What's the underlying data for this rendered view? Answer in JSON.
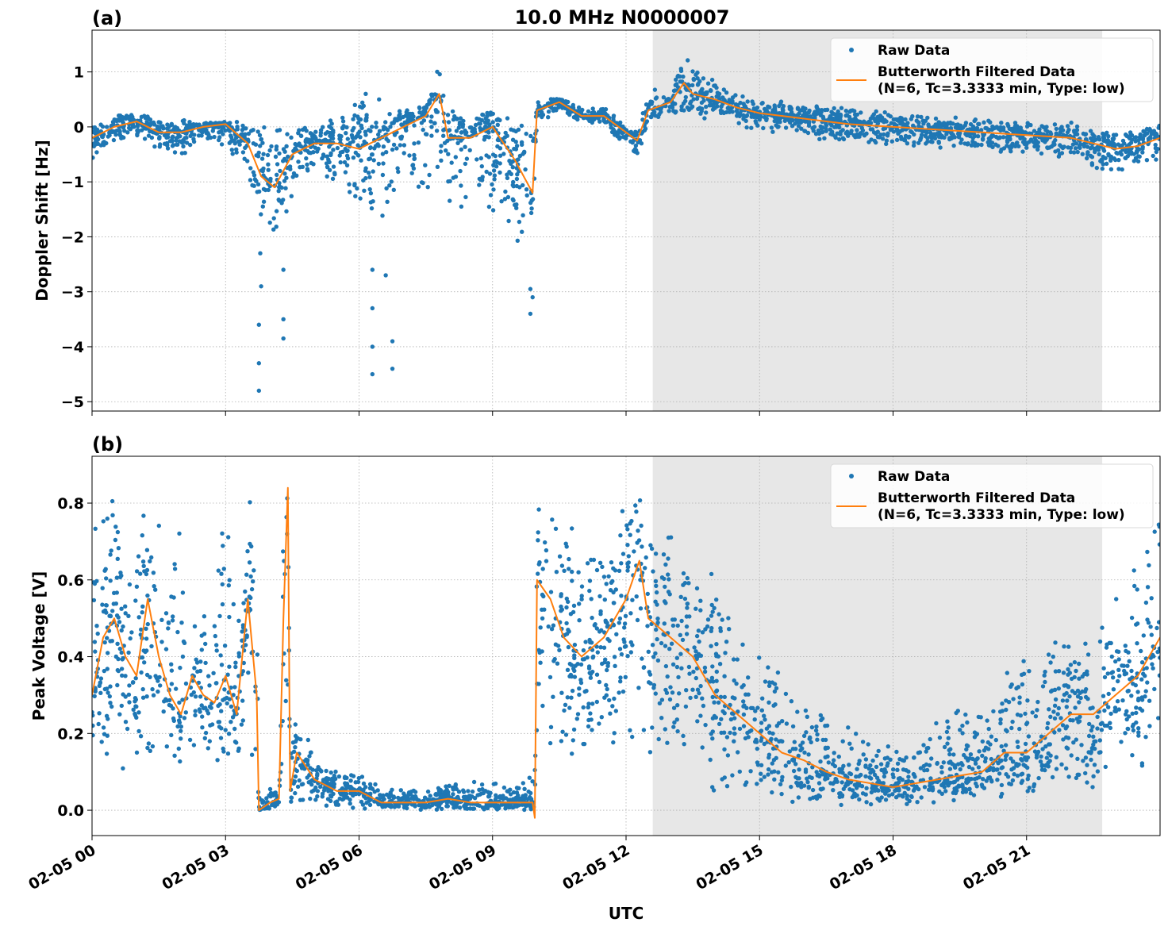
{
  "title": "10.0 MHz N0000007",
  "xlabel": "UTC",
  "xtick_labels": [
    "02-05 00",
    "02-05 03",
    "02-05 06",
    "02-05 09",
    "02-05 12",
    "02-05 15",
    "02-05 18",
    "02-05 21"
  ],
  "xtick_hours": [
    0,
    3,
    6,
    9,
    12,
    15,
    18,
    21
  ],
  "xlim_hours": [
    0,
    24
  ],
  "shaded_span_utc": [
    "12:36",
    "22:42"
  ],
  "colors": {
    "raw": "#1f77b4",
    "filtered": "#ff7f0e",
    "shade": "#e7e7e7",
    "grid": "#b0b0b0"
  },
  "legend": {
    "raw": "Raw Data",
    "filtered_line1": "Butterworth Filtered Data",
    "filtered_line2": "(N=6, Tc=3.3333 min, Type: low)",
    "placement": "top-right"
  },
  "chart_data": [
    {
      "type": "scatter+line",
      "panel_label": "(a)",
      "ylabel": "Doppler Shift [Hz]",
      "ylim": [
        -5.17,
        1.76
      ],
      "yticks": [
        1,
        0,
        -1,
        -2,
        -3,
        -4,
        -5
      ],
      "ytick_labels": [
        "1",
        "0",
        "−1",
        "−2",
        "−3",
        "−4",
        "−5"
      ],
      "grid": true,
      "x_hours": [
        0,
        0.5,
        1,
        1.5,
        2,
        2.5,
        3,
        3.5,
        3.8,
        4.1,
        4.5,
        5,
        5.5,
        6,
        6.5,
        7,
        7.5,
        7.8,
        8,
        8.5,
        9,
        9.5,
        9.9,
        10,
        10.5,
        11,
        11.5,
        12,
        12.25,
        12.5,
        13,
        13.3,
        13.5,
        14,
        14.5,
        15,
        16,
        17,
        18,
        19,
        20,
        21,
        22,
        22.5,
        23,
        23.5,
        24
      ],
      "filtered": [
        -0.2,
        0,
        0.1,
        -0.1,
        -0.1,
        0,
        0.05,
        -0.3,
        -0.9,
        -1.1,
        -0.5,
        -0.3,
        -0.3,
        -0.4,
        -0.2,
        0,
        0.2,
        0.6,
        -0.2,
        -0.2,
        0,
        -0.6,
        -1.2,
        0.3,
        0.45,
        0.2,
        0.2,
        -0.1,
        -0.25,
        0.3,
        0.45,
        0.8,
        0.6,
        0.5,
        0.35,
        0.25,
        0.15,
        0.05,
        0,
        -0.05,
        -0.1,
        -0.15,
        -0.2,
        -0.3,
        -0.4,
        -0.35,
        -0.2
      ],
      "raw_low": [
        -0.6,
        -0.3,
        -0.2,
        -0.5,
        -0.6,
        -0.2,
        -0.4,
        -0.9,
        -2.0,
        -2.2,
        -1.3,
        -0.9,
        -1.2,
        -1.5,
        -1.8,
        -1.2,
        -1.5,
        -0.8,
        -1.5,
        -2.0,
        -1.8,
        -2.2,
        -2.5,
        0.0,
        0.3,
        0.05,
        0.0,
        -0.4,
        -0.55,
        0.05,
        0.2,
        0.2,
        0.2,
        0.1,
        0.0,
        -0.1,
        -0.2,
        -0.3,
        -0.4,
        -0.4,
        -0.45,
        -0.5,
        -0.6,
        -0.8,
        -1.0,
        -0.8,
        -0.6
      ],
      "raw_high": [
        0.1,
        0.25,
        0.3,
        0.2,
        0.15,
        0.1,
        0.1,
        0.1,
        0.1,
        0.1,
        0.2,
        0.1,
        0.2,
        0.6,
        0.3,
        0.3,
        0.5,
        1.4,
        0.4,
        0.3,
        0.35,
        0.3,
        0.2,
        0.5,
        0.55,
        0.35,
        0.35,
        0.1,
        0.0,
        0.8,
        0.55,
        1.4,
        1.1,
        0.9,
        0.6,
        0.5,
        0.45,
        0.35,
        0.3,
        0.2,
        0.15,
        0.1,
        0.1,
        0.0,
        -0.1,
        0.0,
        0.1
      ],
      "raw_outliers": [
        [
          3.75,
          -4.8
        ],
        [
          3.75,
          -4.3
        ],
        [
          3.75,
          -3.6
        ],
        [
          3.8,
          -2.9
        ],
        [
          3.78,
          -2.3
        ],
        [
          4.3,
          -3.85
        ],
        [
          4.3,
          -3.5
        ],
        [
          4.3,
          -2.6
        ],
        [
          6.3,
          -4.5
        ],
        [
          6.3,
          -4.0
        ],
        [
          6.3,
          -3.3
        ],
        [
          6.3,
          -2.6
        ],
        [
          6.75,
          -4.4
        ],
        [
          6.75,
          -3.9
        ],
        [
          6.6,
          -2.7
        ],
        [
          9.85,
          -3.4
        ],
        [
          9.9,
          -3.1
        ],
        [
          9.85,
          -2.95
        ],
        [
          6.15,
          0.6
        ],
        [
          6.45,
          0.5
        ]
      ]
    },
    {
      "type": "scatter+line",
      "panel_label": "(b)",
      "ylabel": "Peak Voltage [V]",
      "ylim": [
        -0.066,
        0.922
      ],
      "yticks": [
        0.8,
        0.6,
        0.4,
        0.2,
        0.0
      ],
      "ytick_labels": [
        "0.8",
        "0.6",
        "0.4",
        "0.2",
        "0.0"
      ],
      "grid": true,
      "x_hours": [
        0,
        0.25,
        0.5,
        0.75,
        1,
        1.25,
        1.5,
        1.75,
        2,
        2.25,
        2.5,
        2.75,
        3,
        3.25,
        3.5,
        3.7,
        3.75,
        4,
        4.2,
        4.3,
        4.4,
        4.45,
        4.6,
        5,
        5.5,
        6,
        6.5,
        7,
        7.5,
        8,
        8.5,
        9,
        9.5,
        9.9,
        9.95,
        10,
        10.3,
        10.6,
        11,
        11.5,
        12,
        12.3,
        12.5,
        13,
        13.5,
        14,
        14.5,
        15,
        15.5,
        16,
        16.5,
        17,
        17.5,
        18,
        18.5,
        19,
        19.5,
        20,
        20.5,
        21,
        21.5,
        22,
        22.5,
        23,
        23.5,
        24
      ],
      "filtered": [
        0.3,
        0.45,
        0.5,
        0.4,
        0.35,
        0.55,
        0.4,
        0.3,
        0.25,
        0.35,
        0.3,
        0.28,
        0.35,
        0.25,
        0.55,
        0.3,
        0.0,
        0.02,
        0.03,
        0.5,
        0.84,
        0.05,
        0.15,
        0.08,
        0.05,
        0.05,
        0.02,
        0.02,
        0.02,
        0.03,
        0.02,
        0.02,
        0.02,
        0.02,
        -0.02,
        0.6,
        0.55,
        0.45,
        0.4,
        0.45,
        0.55,
        0.65,
        0.5,
        0.45,
        0.4,
        0.3,
        0.25,
        0.2,
        0.15,
        0.13,
        0.1,
        0.08,
        0.07,
        0.06,
        0.07,
        0.08,
        0.09,
        0.1,
        0.15,
        0.15,
        0.2,
        0.25,
        0.25,
        0.3,
        0.35,
        0.45
      ],
      "raw_low": [
        0.08,
        0.08,
        0.08,
        0.08,
        0.08,
        0.08,
        0.08,
        0.08,
        0.08,
        0.08,
        0.08,
        0.08,
        0.08,
        0.08,
        0.08,
        0.08,
        0,
        0,
        0,
        0,
        0,
        0,
        0,
        0,
        0,
        0,
        0,
        0,
        0,
        0,
        0,
        0,
        0,
        0,
        0,
        0.15,
        0.15,
        0.12,
        0.12,
        0.12,
        0.15,
        0.15,
        0.1,
        0.08,
        0.05,
        0.04,
        0.03,
        0.02,
        0.01,
        0.01,
        0.01,
        0.01,
        0.01,
        0.01,
        0.01,
        0.01,
        0.01,
        0.01,
        0.02,
        0.02,
        0.03,
        0.04,
        0.05,
        0.08,
        0.08,
        0.1
      ],
      "raw_high": [
        0.85,
        0.8,
        0.85,
        0.75,
        0.85,
        0.8,
        0.75,
        0.65,
        0.82,
        0.6,
        0.55,
        0.6,
        0.87,
        0.6,
        0.85,
        0.8,
        0.05,
        0.06,
        0.08,
        0.8,
        0.83,
        0.3,
        0.27,
        0.15,
        0.1,
        0.1,
        0.06,
        0.06,
        0.05,
        0.07,
        0.08,
        0.08,
        0.07,
        0.1,
        0.1,
        0.86,
        0.82,
        0.8,
        0.78,
        0.75,
        0.85,
        0.86,
        0.8,
        0.78,
        0.65,
        0.65,
        0.55,
        0.45,
        0.35,
        0.3,
        0.3,
        0.25,
        0.2,
        0.18,
        0.2,
        0.25,
        0.3,
        0.3,
        0.35,
        0.5,
        0.45,
        0.55,
        0.5,
        0.55,
        0.65,
        0.82
      ],
      "raw_outliers": []
    }
  ]
}
